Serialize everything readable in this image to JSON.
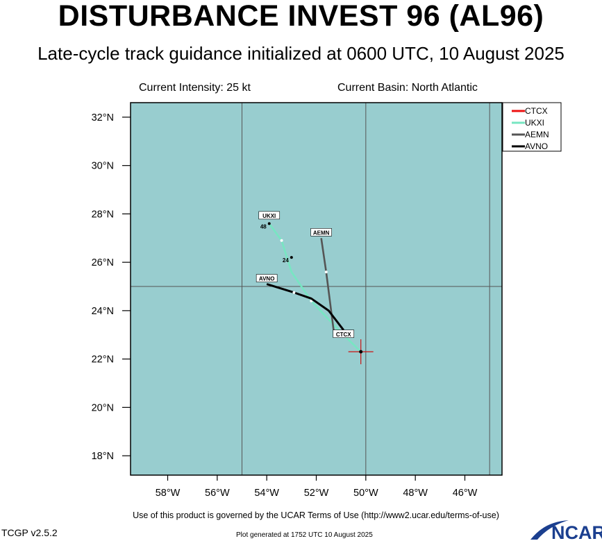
{
  "title": "DISTURBANCE INVEST 96 (AL96)",
  "subtitle": "Late-cycle track guidance initialized at 0600 UTC, 10 August 2025",
  "current_intensity": "Current Intensity: 25 kt",
  "current_basin": "Current Basin: North Atlantic",
  "footer": {
    "terms": "Use of this product is governed by the UCAR Terms of Use (http://www2.ucar.edu/terms-of-use)",
    "version": "TCGP v2.5.2",
    "generated": "Plot generated at 1752 UTC   10 August 2025",
    "logo_text": "NCAR"
  },
  "colors": {
    "ocean": "#98cdcf",
    "CTCX": "#ee1111",
    "UKXI": "#77e6c2",
    "AEMN": "#555555",
    "AVNO": "#000000"
  },
  "map": {
    "lon_range": [
      -59.5,
      -44.5
    ],
    "lat_range": [
      17.2,
      32.6
    ],
    "lon_ticks": [
      -58,
      -56,
      -54,
      -52,
      -50,
      -48,
      -46
    ],
    "lon_tick_labels": [
      "58°W",
      "56°W",
      "54°W",
      "52°W",
      "50°W",
      "48°W",
      "46°W"
    ],
    "lat_ticks": [
      18,
      20,
      22,
      24,
      26,
      28,
      30,
      32
    ],
    "lat_tick_labels": [
      "18°N",
      "20°N",
      "22°N",
      "24°N",
      "26°N",
      "28°N",
      "30°N",
      "32°N"
    ],
    "grid_lons": [
      -55,
      -50,
      -45
    ],
    "grid_lats": [
      25
    ],
    "current_position": {
      "lon": -50.2,
      "lat": 22.3
    }
  },
  "legend": [
    "CTCX",
    "UKXI",
    "AEMN",
    "AVNO"
  ],
  "tracks": [
    {
      "name": "UKXI",
      "label": "UKXI",
      "points": [
        [
          -50.2,
          22.3
        ],
        [
          -51.1,
          23.2
        ],
        [
          -52.2,
          24.4
        ],
        [
          -53.0,
          25.6
        ],
        [
          -53.4,
          26.9
        ],
        [
          -53.9,
          27.6
        ]
      ],
      "markers": [
        [
          -52.2,
          24.4
        ],
        [
          -53.4,
          26.9
        ]
      ],
      "hour_marks": [
        {
          "lon": -53.9,
          "lat": 27.6,
          "text": "48"
        }
      ],
      "label_pos": [
        -53.9,
        27.9
      ]
    },
    {
      "name": "AEMN",
      "label": "AEMN",
      "points": [
        [
          -51.3,
          23.2
        ],
        [
          -51.6,
          25.6
        ],
        [
          -51.8,
          27.0
        ]
      ],
      "markers": [
        [
          -51.6,
          25.6
        ]
      ],
      "hour_marks": [],
      "label_pos": [
        -51.8,
        27.2
      ]
    },
    {
      "name": "AVNO",
      "label": "AVNO",
      "points": [
        [
          -50.9,
          23.2
        ],
        [
          -51.5,
          24.0
        ],
        [
          -52.2,
          24.5
        ],
        [
          -52.9,
          24.75
        ],
        [
          -54.0,
          25.1
        ]
      ],
      "markers": [
        [
          -52.9,
          24.75
        ]
      ],
      "hour_marks": [],
      "label_pos": [
        -54.0,
        25.3
      ]
    },
    {
      "name": "CTCX",
      "label": "CTCX",
      "points": [
        [
          -50.9,
          22.9
        ],
        [
          -50.9,
          22.9
        ]
      ],
      "markers": [],
      "hour_marks": [
        {
          "lon": -53.0,
          "lat": 26.2,
          "text": "24"
        }
      ],
      "label_pos": [
        -50.9,
        23.0
      ]
    }
  ]
}
